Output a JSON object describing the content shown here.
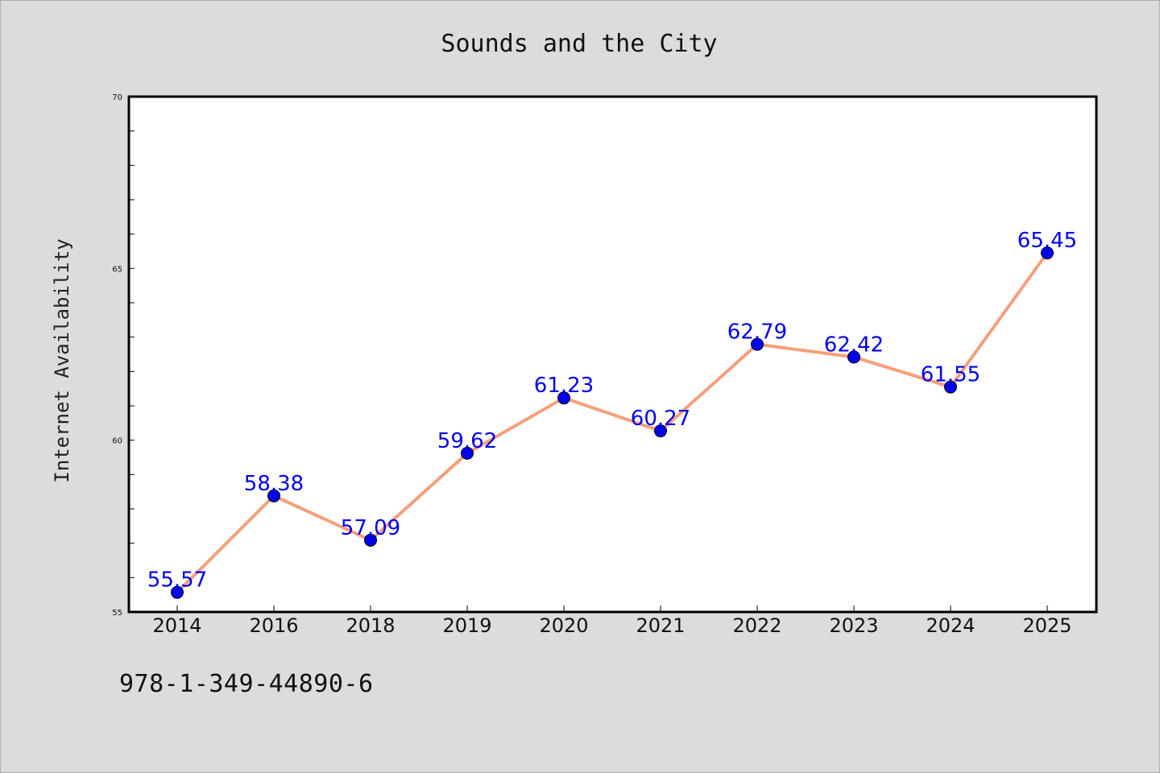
{
  "chart_data": {
    "type": "line",
    "title": "Sounds and the City",
    "xlabel": "",
    "ylabel": "Internet Availability",
    "categories": [
      "2014",
      "2016",
      "2018",
      "2019",
      "2020",
      "2021",
      "2022",
      "2023",
      "2024",
      "2025"
    ],
    "series": [
      {
        "values": [
          55.57,
          58.38,
          57.09,
          59.62,
          61.23,
          60.27,
          62.79,
          62.42,
          61.55,
          65.45
        ],
        "labels": [
          "55.57",
          "58.38",
          "57.09",
          "59.62",
          "61.23",
          "60.27",
          "62.79",
          "62.42",
          "61.55",
          "65.45"
        ],
        "line_color": "#f4a07c",
        "marker_color": "#0000ee",
        "label_color": "#0000ee"
      }
    ],
    "ylim": [
      55,
      70
    ],
    "yticks": [
      "55",
      "60",
      "65",
      "70"
    ],
    "grid": false,
    "legend": "none"
  },
  "caption": "978-1-349-44890-6"
}
